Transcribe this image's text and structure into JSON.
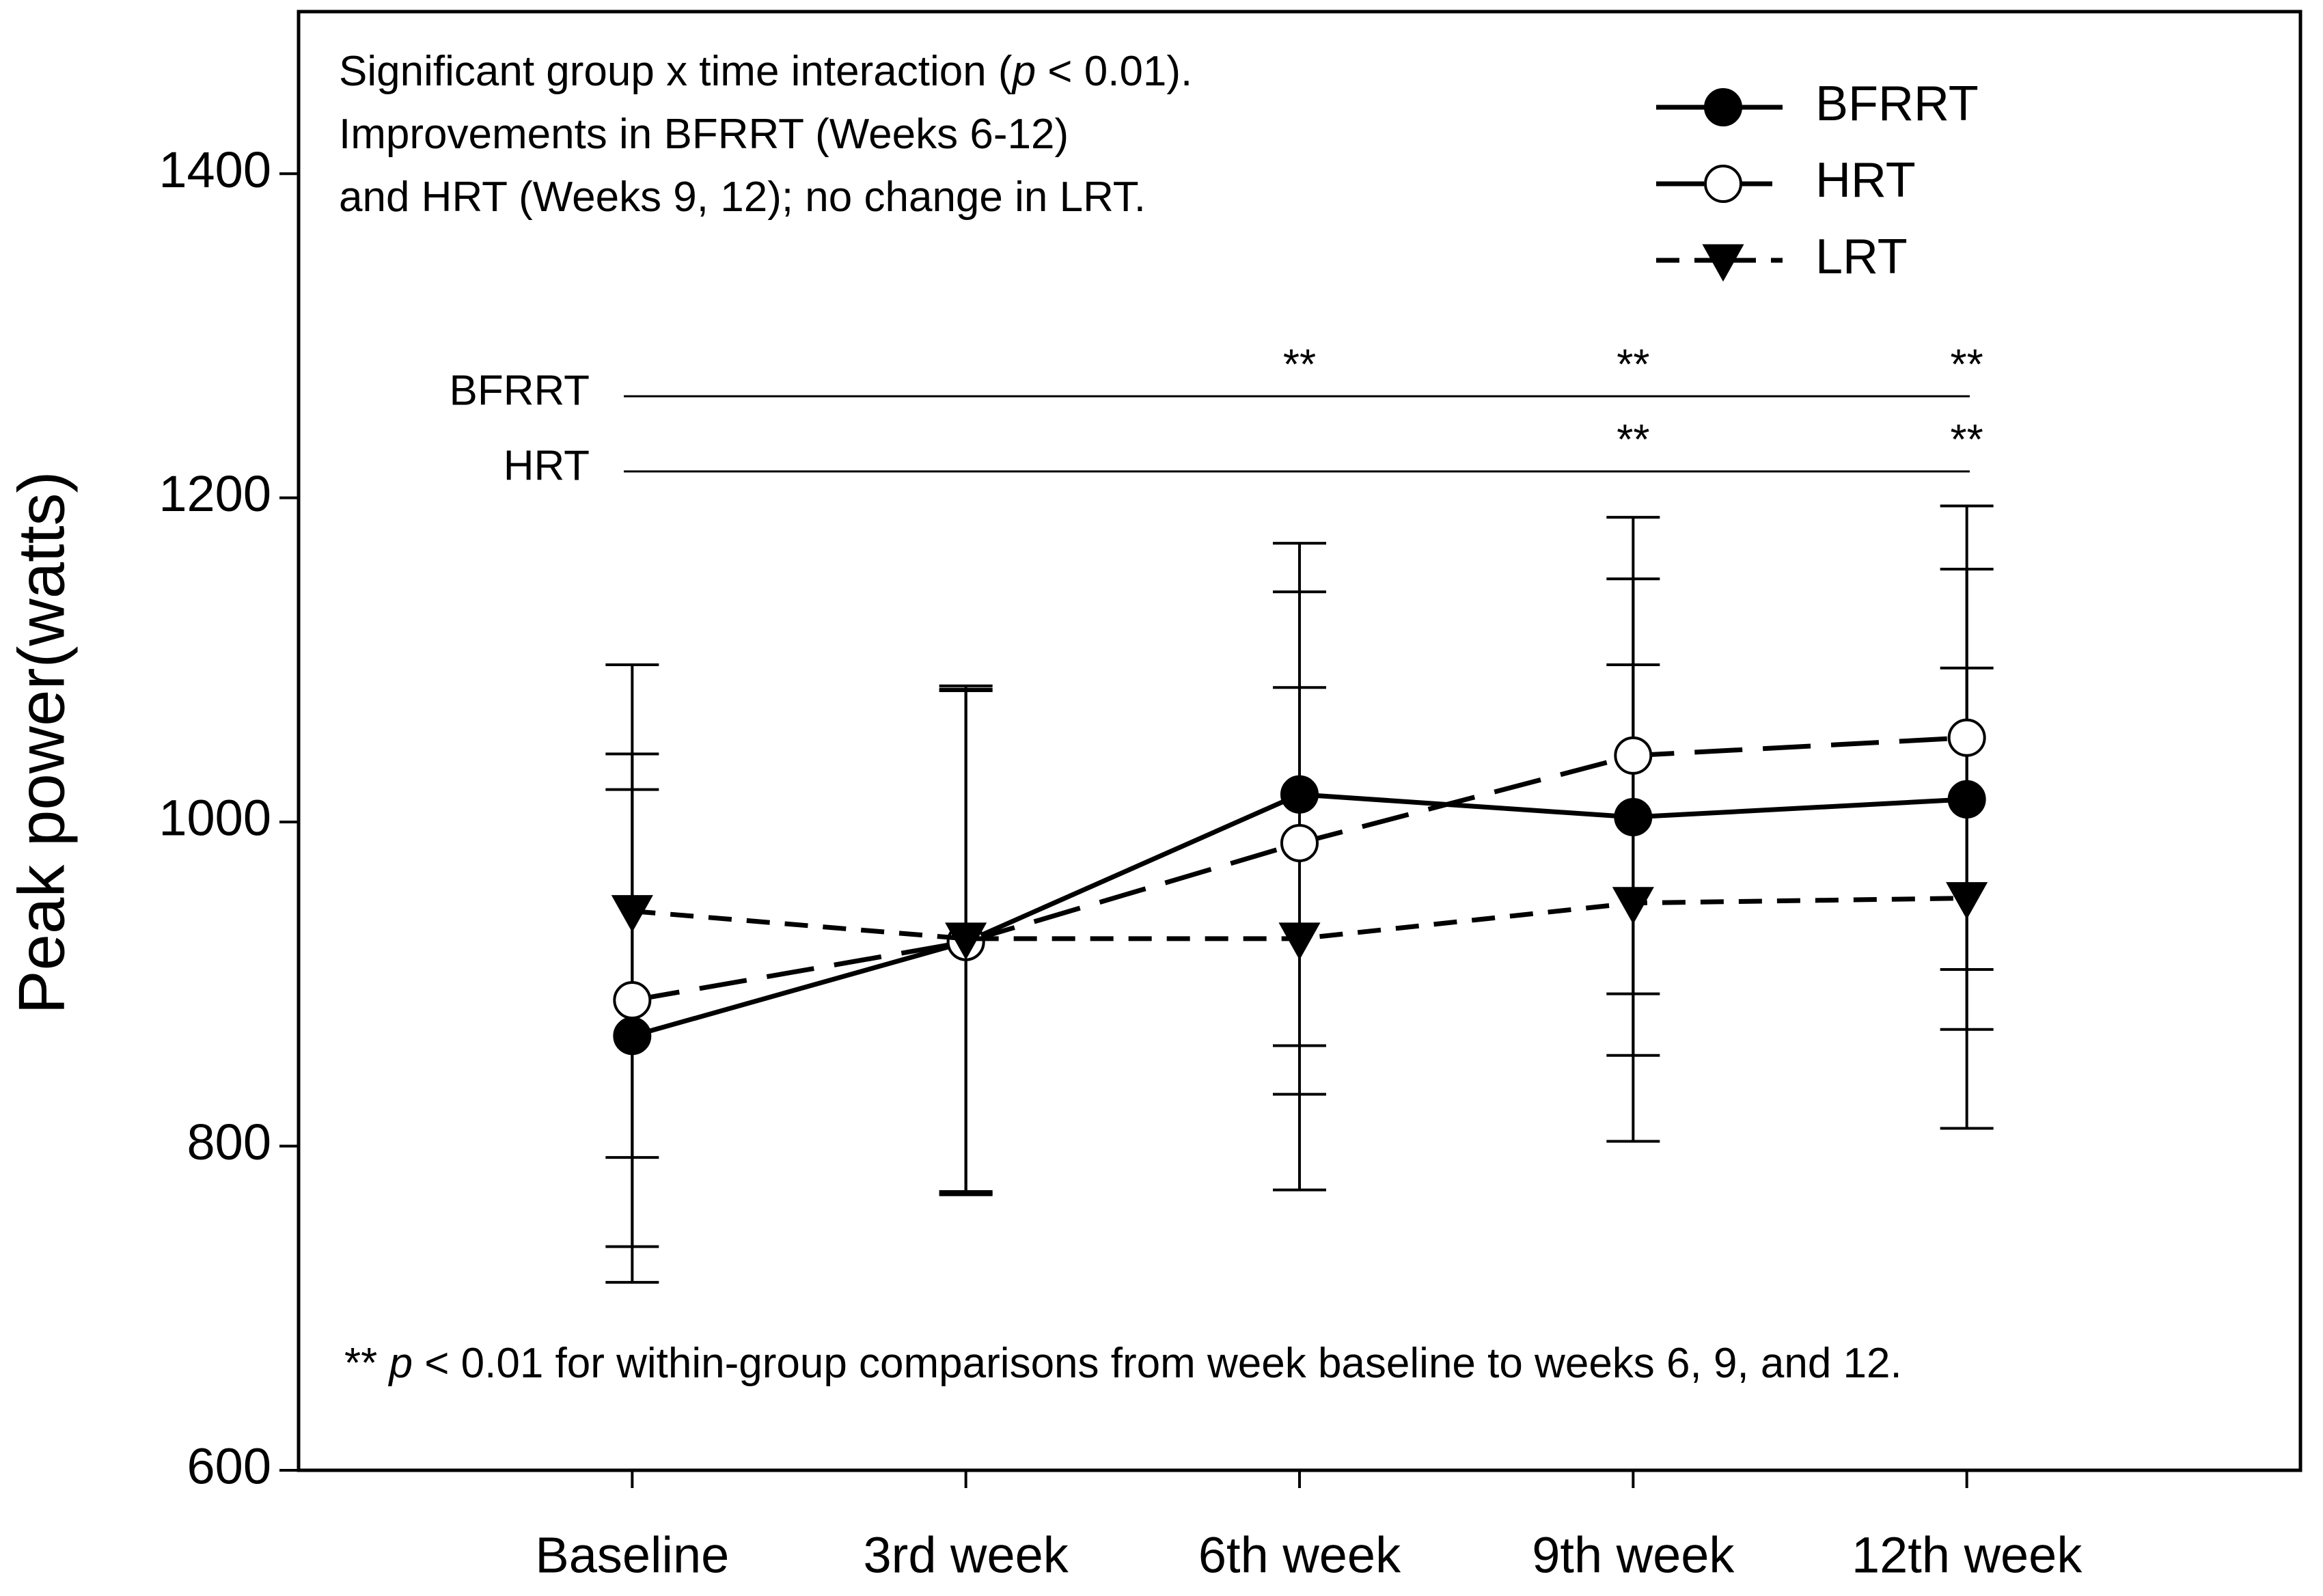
{
  "chart_data": {
    "type": "line",
    "y_label": "Peak power(watts)",
    "categories": [
      "Baseline",
      "3rd week",
      "6th week",
      "9th week",
      "12th week"
    ],
    "ylim": [
      600,
      1500
    ],
    "yticks": [
      600,
      800,
      1000,
      1200,
      1400
    ],
    "series": [
      {
        "name": "BFRRT",
        "color": "#000000",
        "line": "solid",
        "marker": "filled-circle",
        "values": [
          868,
          926,
          1017,
          1003,
          1014
        ],
        "errors": [
          152,
          156,
          155,
          147,
          142
        ]
      },
      {
        "name": "HRT",
        "color": "#000000",
        "line": "long-dash",
        "marker": "open-circle",
        "values": [
          890,
          926,
          987,
          1041,
          1052
        ],
        "errors": [
          152,
          155,
          155,
          147,
          143
        ]
      },
      {
        "name": "LRT",
        "color": "#000000",
        "line": "short-dash",
        "marker": "filled-triangle-down",
        "values": [
          945,
          928,
          928,
          950,
          953
        ],
        "errors": [
          152,
          156,
          155,
          147,
          142
        ]
      }
    ],
    "legend_position": "upper right",
    "annotation_top": [
      [
        {
          "text": "Significant group x time interaction ("
        },
        {
          "text": "p",
          "italic": true
        },
        {
          "text": " < 0.01)."
        }
      ],
      [
        {
          "text": "Improvements in BFRRT (Weeks 6-12)"
        }
      ],
      [
        {
          "text": "and HRT (Weeks 9, 12); no change in LRT."
        }
      ]
    ],
    "annotation_bottom": [
      {
        "text": "** "
      },
      {
        "text": "p",
        "italic": true
      },
      {
        "text": " < 0.01 for within-group comparisons from week baseline to weeks 6, 9, and 12."
      }
    ],
    "significance": [
      {
        "label": "BFRRT",
        "marker": "**",
        "at": [
          2,
          3,
          4
        ]
      },
      {
        "label": "HRT",
        "marker": "**",
        "at": [
          3,
          4
        ]
      }
    ]
  }
}
